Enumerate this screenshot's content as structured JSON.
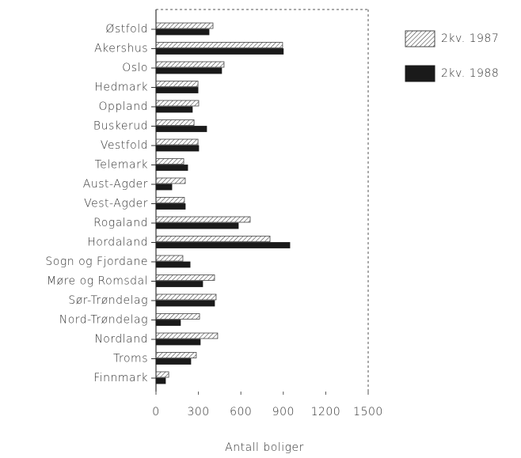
{
  "chart_data": {
    "type": "bar",
    "x_label": "Antall boliger",
    "categories": [
      "Østfold",
      "Akershus",
      "Oslo",
      "Hedmark",
      "Oppland",
      "Buskerud",
      "Vestfold",
      "Telemark",
      "Aust-Agder",
      "Vest-Agder",
      "Rogaland",
      "Hordaland",
      "Sogn og Fjordane",
      "Møre og Romsdal",
      "Sør-Trøndelag",
      "Nord-Trøndelag",
      "Nordland",
      "Troms",
      "Finnmark"
    ],
    "series": [
      {
        "name": "2kv. 1987",
        "color": "#444444",
        "pattern": "hatch",
        "values": [
          403,
          895,
          481,
          297,
          302,
          269,
          297,
          196,
          207,
          201,
          666,
          806,
          190,
          414,
          425,
          308,
          436,
          285,
          90
        ]
      },
      {
        "name": "2kv. 1988",
        "color": "#1a1a1a",
        "pattern": "solid",
        "values": [
          375,
          900,
          464,
          297,
          257,
          358,
          302,
          224,
          112,
          207,
          582,
          946,
          241,
          330,
          414,
          173,
          313,
          246,
          67
        ]
      }
    ],
    "xlim": [
      0,
      1500
    ],
    "xticks": [
      0,
      300,
      600,
      900,
      1200,
      1500
    ]
  }
}
